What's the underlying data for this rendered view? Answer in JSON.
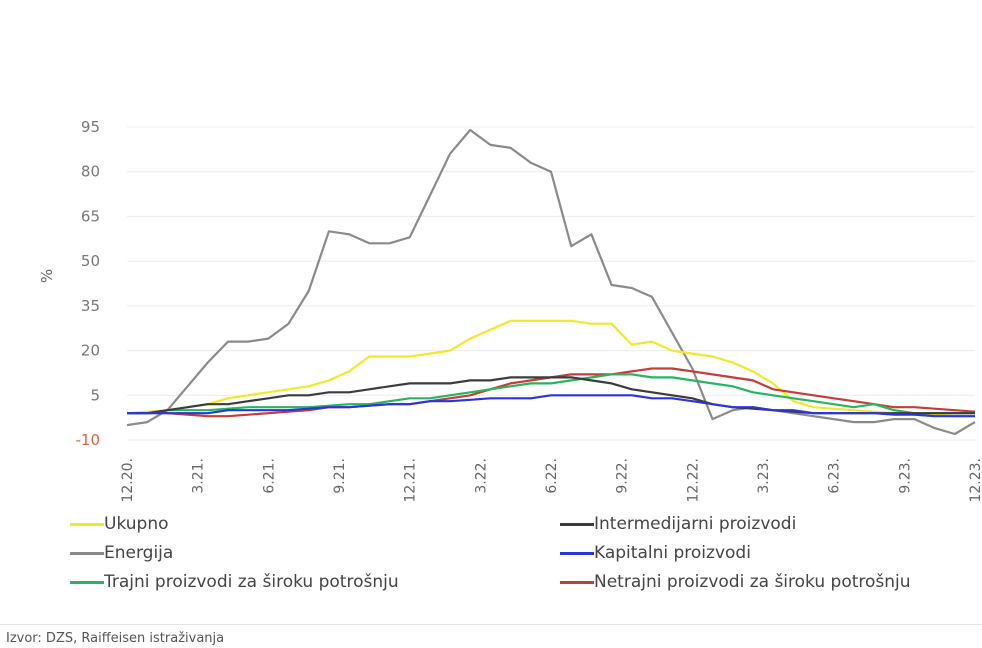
{
  "chart_data": {
    "type": "line",
    "title": "",
    "xlabel": "",
    "ylabel": "%",
    "ylim": [
      -10,
      100
    ],
    "yticks": [
      95,
      80,
      65,
      50,
      35,
      20,
      5,
      -10
    ],
    "xtick_labels": [
      "12.20.",
      "3.21.",
      "6.21.",
      "9.21.",
      "12.21.",
      "3.22.",
      "6.22.",
      "9.22.",
      "12.22.",
      "3.23.",
      "6.23.",
      "9.23.",
      "12.23."
    ],
    "grid": "horizontal",
    "legend_position": "bottom",
    "series": [
      {
        "name": "Ukupno",
        "color": "#f2e82a",
        "values": [
          -1,
          -0.5,
          0,
          1,
          2,
          4,
          5,
          6,
          7,
          8,
          10,
          13,
          18,
          18,
          18,
          19,
          20,
          24,
          27,
          30,
          30,
          30,
          30,
          29,
          29,
          22,
          23,
          20,
          19,
          18,
          16,
          13,
          9,
          3,
          1,
          0.5,
          0,
          -0.5,
          -1,
          -1,
          -1.5,
          -2,
          -2
        ]
      },
      {
        "name": "Energija",
        "color": "#8a8a8a",
        "values": [
          -5,
          -4,
          0,
          8,
          16,
          23,
          23,
          24,
          29,
          40,
          60,
          59,
          56,
          56,
          58,
          72,
          86,
          94,
          89,
          88,
          83,
          80,
          55,
          59,
          42,
          41,
          38,
          26,
          14,
          -3,
          0,
          1,
          0,
          -1,
          -2,
          -3,
          -4,
          -4,
          -3,
          -3,
          -6,
          -8,
          -4
        ]
      },
      {
        "name": "Trajni proizvodi za široku potrošnju",
        "color": "#27b560",
        "values": [
          -1,
          -1,
          0,
          0,
          0,
          0.5,
          1,
          1,
          1,
          1,
          1.5,
          2,
          2,
          3,
          4,
          4,
          5,
          6,
          7,
          8,
          9,
          9,
          10,
          11,
          12,
          12,
          11,
          11,
          10,
          9,
          8,
          6,
          5,
          4,
          3,
          2,
          1,
          2,
          0,
          -1,
          -1,
          -1,
          -1
        ]
      },
      {
        "name": "Intermedijarni proizvodi",
        "color": "#3c3c3c",
        "values": [
          -1,
          -1,
          0,
          1,
          2,
          2,
          3,
          4,
          5,
          5,
          6,
          6,
          7,
          8,
          9,
          9,
          9,
          10,
          10,
          11,
          11,
          11,
          11,
          10,
          9,
          7,
          6,
          5,
          4,
          2,
          1,
          0.5,
          0,
          -0.5,
          -1,
          -1,
          -1,
          -1,
          -1,
          -1,
          -1,
          -1,
          -1
        ]
      },
      {
        "name": "Kapitalni proizvodi",
        "color": "#2a36d6",
        "values": [
          -1,
          -1,
          -1,
          -1,
          -1,
          0,
          0,
          0,
          0,
          0.5,
          1,
          1,
          1.5,
          2,
          2,
          3,
          3,
          3.5,
          4,
          4,
          4,
          5,
          5,
          5,
          5,
          5,
          4,
          4,
          3,
          2,
          1,
          1,
          0,
          0,
          -1,
          -1,
          -1,
          -1,
          -1.5,
          -1.5,
          -2,
          -2,
          -2
        ]
      },
      {
        "name": "Netrajni proizvodi za široku potrošnju",
        "color": "#c63c36",
        "values": [
          -1,
          -1,
          -1,
          -1.5,
          -2,
          -2,
          -1.5,
          -1,
          -0.5,
          0,
          1,
          1,
          1.5,
          2,
          2,
          3,
          4,
          5,
          7,
          9,
          10,
          11,
          12,
          12,
          12,
          13,
          14,
          14,
          13,
          12,
          11,
          10,
          7,
          6,
          5,
          4,
          3,
          2,
          1,
          1,
          0.5,
          0,
          -0.5
        ]
      }
    ]
  },
  "source": "Izvor: DZS, Raiffeisen istraživanja"
}
